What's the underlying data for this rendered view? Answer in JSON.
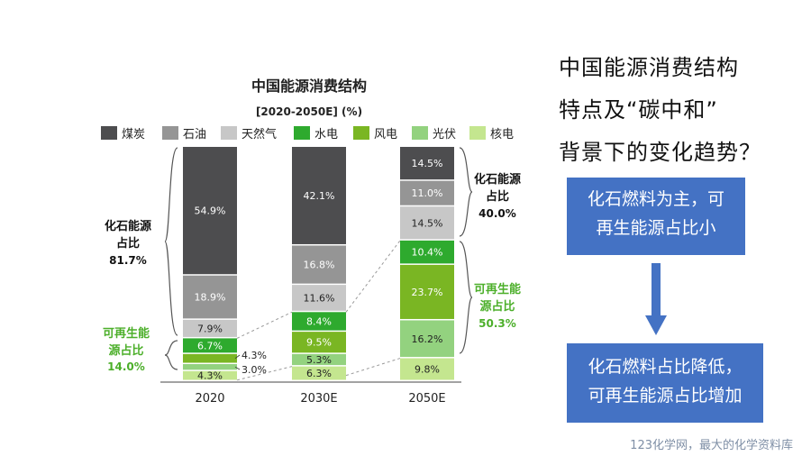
{
  "chart_data": {
    "type": "bar",
    "stacked": true,
    "title": "中国能源消费结构",
    "subtitle": "[2020-2050E] (%)",
    "categories": [
      "2020",
      "2030E",
      "2050E"
    ],
    "series": [
      {
        "name": "煤炭",
        "color": "#4d4d4f",
        "values": [
          54.9,
          42.1,
          14.5
        ]
      },
      {
        "name": "石油",
        "color": "#959595",
        "values": [
          18.9,
          16.8,
          11.0
        ]
      },
      {
        "name": "天然气",
        "color": "#c7c7c7",
        "values": [
          7.9,
          11.6,
          14.5
        ]
      },
      {
        "name": "水电",
        "color": "#2eaa2e",
        "values": [
          6.7,
          8.4,
          10.4
        ]
      },
      {
        "name": "风电",
        "color": "#7ab623",
        "values": [
          4.3,
          9.5,
          23.7
        ]
      },
      {
        "name": "光伏",
        "color": "#93d27f",
        "values": [
          3.0,
          5.3,
          16.2
        ]
      },
      {
        "name": "核电",
        "color": "#c4e68f",
        "values": [
          4.3,
          6.3,
          9.8
        ]
      }
    ],
    "labels": [
      [
        "54.9%",
        "42.1%",
        "14.5%"
      ],
      [
        "18.9%",
        "16.8%",
        "11.0%"
      ],
      [
        "7.9%",
        "11.6%",
        "14.5%"
      ],
      [
        "6.7%",
        "8.4%",
        "10.4%"
      ],
      [
        "4.3%",
        "9.5%",
        "23.7%"
      ],
      [
        "3.0%",
        "5.3%",
        "16.2%"
      ],
      [
        "4.3%",
        "6.3%",
        "9.8%"
      ]
    ],
    "ylim": [
      0,
      100
    ],
    "legend_position": "top",
    "annotations": {
      "fossil_2020": {
        "label": "化石能源占比",
        "value": "81.7%"
      },
      "renew_2020": {
        "label": "可再生能源占比",
        "value": "14.0%"
      },
      "fossil_2050": {
        "label": "化石能源占比",
        "value": "40.0%"
      },
      "renew_2050": {
        "label": "可再生能源占比",
        "value": "50.3%"
      }
    },
    "colors": {
      "fossil_text": "#111111",
      "renew_text": "#4caf2a"
    }
  },
  "right_panel": {
    "title_lines": [
      "中国能源消费结构",
      "特点及“碳中和”",
      "背景下的变化趋势？"
    ],
    "box1": [
      "化石燃料为主，可",
      "再生能源占比小"
    ],
    "box2": [
      "化石燃料占比降低，",
      "可再生能源占比增加"
    ],
    "box_color": "#4472c4"
  },
  "footer": "123化学网，最大的化学资料库"
}
